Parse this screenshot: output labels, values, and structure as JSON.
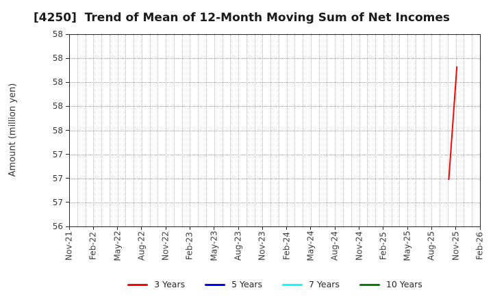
{
  "chart_data": {
    "type": "line",
    "title": "[4250]  Trend of Mean of 12-Month Moving Sum of Net Incomes",
    "ylabel": "Amount (million yen)",
    "xlabel": "",
    "ylim": [
      56.5,
      58.5
    ],
    "y_ticks": [
      {
        "value": 58.5,
        "label": "58"
      },
      {
        "value": 58.25,
        "label": "58"
      },
      {
        "value": 58.0,
        "label": "58"
      },
      {
        "value": 57.75,
        "label": "58"
      },
      {
        "value": 57.5,
        "label": "58"
      },
      {
        "value": 57.25,
        "label": "57"
      },
      {
        "value": 57.0,
        "label": "57"
      },
      {
        "value": 56.75,
        "label": "57"
      },
      {
        "value": 56.5,
        "label": "56"
      }
    ],
    "x_axis": {
      "months_total": 51,
      "tick_interval_months": 3,
      "tick_labels": [
        "Nov-21",
        "Feb-22",
        "May-22",
        "Aug-22",
        "Nov-22",
        "Feb-23",
        "May-23",
        "Aug-23",
        "Nov-23",
        "Feb-24",
        "May-24",
        "Aug-24",
        "Nov-24",
        "Feb-25",
        "May-25",
        "Aug-25",
        "Nov-25",
        "Feb-26"
      ]
    },
    "grid": {
      "horizontal": true,
      "vertical_monthly": true,
      "style": "dotted"
    },
    "legend": {
      "position": "bottom-center",
      "entries": [
        {
          "label": "3 Years",
          "color": "#ff0000"
        },
        {
          "label": "5 Years",
          "color": "#0000ff"
        },
        {
          "label": "7 Years",
          "color": "#00ffff"
        },
        {
          "label": "10 Years",
          "color": "#008000"
        }
      ]
    },
    "series": [
      {
        "name": "3 Years",
        "color": "#ff0000",
        "points": [
          {
            "x_label": "Oct-25",
            "month_index": 47,
            "value": 57.0
          },
          {
            "x_label": "Nov-25",
            "month_index": 48,
            "value": 58.17
          }
        ]
      },
      {
        "name": "5 Years",
        "color": "#0000ff",
        "points": []
      },
      {
        "name": "7 Years",
        "color": "#00ffff",
        "points": []
      },
      {
        "name": "10 Years",
        "color": "#008000",
        "points": []
      }
    ]
  }
}
